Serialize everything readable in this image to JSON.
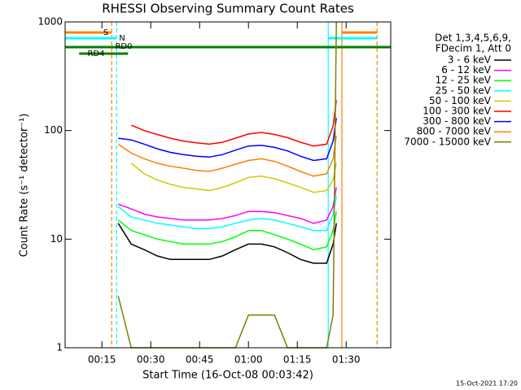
{
  "chart_data": {
    "type": "line",
    "title": "RHESSI Observing Summary Count Rates",
    "x_label": "Start Time (16-Oct-08 00:03:42)",
    "y_label": "Count Rate (s⁻¹ detector⁻¹)",
    "footer": "15-Oct-2021 17:20",
    "legend_header": [
      "Det 1,3,4,5,6,9,",
      "FDecim 1, Att 0"
    ],
    "log_y": true,
    "xlim": [
      3.7,
      103.7
    ],
    "xticks": [
      {
        "value": 15,
        "label": "00:15"
      },
      {
        "value": 30,
        "label": "00:30"
      },
      {
        "value": 45,
        "label": "00:45"
      },
      {
        "value": 60,
        "label": "01:00"
      },
      {
        "value": 75,
        "label": "01:15"
      },
      {
        "value": 90,
        "label": "01:30"
      }
    ],
    "ylim": [
      1,
      1000
    ],
    "yticks": [
      1,
      10,
      100,
      1000
    ],
    "x": [
      20,
      24,
      28,
      32,
      36,
      40,
      44,
      48,
      52,
      56,
      60,
      64,
      68,
      72,
      76,
      80,
      84,
      86,
      87
    ],
    "series": [
      {
        "name": "3 - 6 keV",
        "color": "#000000",
        "values": [
          14,
          9,
          8,
          7,
          6.5,
          6.5,
          6.5,
          6.5,
          7,
          8,
          9,
          9,
          8.5,
          7.5,
          6.5,
          6,
          6,
          9,
          14
        ]
      },
      {
        "name": "6 - 12 keV",
        "color": "#ff00ff",
        "values": [
          21,
          19,
          17,
          16,
          15.5,
          15,
          15,
          15,
          15.5,
          16.5,
          18,
          18,
          17.5,
          16.5,
          15.5,
          14,
          15,
          20,
          30
        ]
      },
      {
        "name": "12 - 25 keV",
        "color": "#00ff00",
        "values": [
          15,
          12,
          11,
          10,
          9.5,
          9,
          9,
          9,
          9.5,
          10.5,
          12,
          12,
          11,
          10,
          9,
          8,
          8.5,
          12,
          18
        ]
      },
      {
        "name": "25 - 50 keV",
        "color": "#00ffff",
        "values": [
          20,
          16,
          15,
          14,
          13.5,
          13,
          12.5,
          12.5,
          13,
          14,
          15,
          15.5,
          15,
          14,
          13,
          12,
          12,
          17,
          25
        ]
      },
      {
        "name": "50 - 100 keV",
        "color": "#cccc00",
        "values": [
          null,
          50,
          40,
          35,
          32,
          30,
          29,
          28,
          30,
          33,
          37,
          38,
          36,
          33,
          30,
          27,
          28,
          35,
          50
        ]
      },
      {
        "name": "100 - 300 keV",
        "color": "#ff0000",
        "values": [
          null,
          112,
          100,
          92,
          85,
          80,
          77,
          75,
          78,
          85,
          93,
          96,
          92,
          86,
          78,
          72,
          75,
          110,
          190
        ]
      },
      {
        "name": "300 - 800 keV",
        "color": "#0000ff",
        "values": [
          85,
          82,
          75,
          68,
          63,
          60,
          58,
          57,
          60,
          66,
          72,
          73,
          70,
          65,
          58,
          53,
          55,
          80,
          130
        ]
      },
      {
        "name": "800 - 7000 keV",
        "color": "#ff8000",
        "values": [
          75,
          62,
          55,
          50,
          47,
          45,
          43,
          42,
          45,
          49,
          53,
          55,
          52,
          47,
          42,
          38,
          40,
          55,
          90
        ]
      },
      {
        "name": "7000 - 15000 keV",
        "color": "#808000",
        "values": [
          3,
          1,
          1,
          1,
          1,
          1,
          1,
          1,
          1,
          1,
          2,
          2,
          2,
          1,
          1,
          1,
          1,
          2,
          1000
        ]
      }
    ],
    "flags": [
      {
        "label": "S",
        "color": "#ff8000",
        "segments": [
          [
            3.7,
            18
          ],
          [
            88.7,
            99.5
          ]
        ]
      },
      {
        "label": "N",
        "color": "#00ffff",
        "segments": [
          [
            3.7,
            19.5
          ],
          [
            84.5,
            99.5
          ]
        ]
      },
      {
        "label": "RD0",
        "color": "#008000",
        "segments": [
          [
            3.7,
            103.7
          ]
        ]
      },
      {
        "label": "RD4",
        "color": "#008000",
        "segments": [
          [
            8,
            23
          ]
        ]
      }
    ],
    "markers": [
      {
        "x": 18,
        "color": "#ff8000",
        "dashed": true
      },
      {
        "x": 19.5,
        "color": "#00ffff",
        "dashed": true
      },
      {
        "x": 84.5,
        "color": "#00ffff",
        "dashed": false
      },
      {
        "x": 88.7,
        "color": "#ff8000",
        "dashed": false
      },
      {
        "x": 99.5,
        "color": "#ff8000",
        "dashed": true
      }
    ]
  }
}
